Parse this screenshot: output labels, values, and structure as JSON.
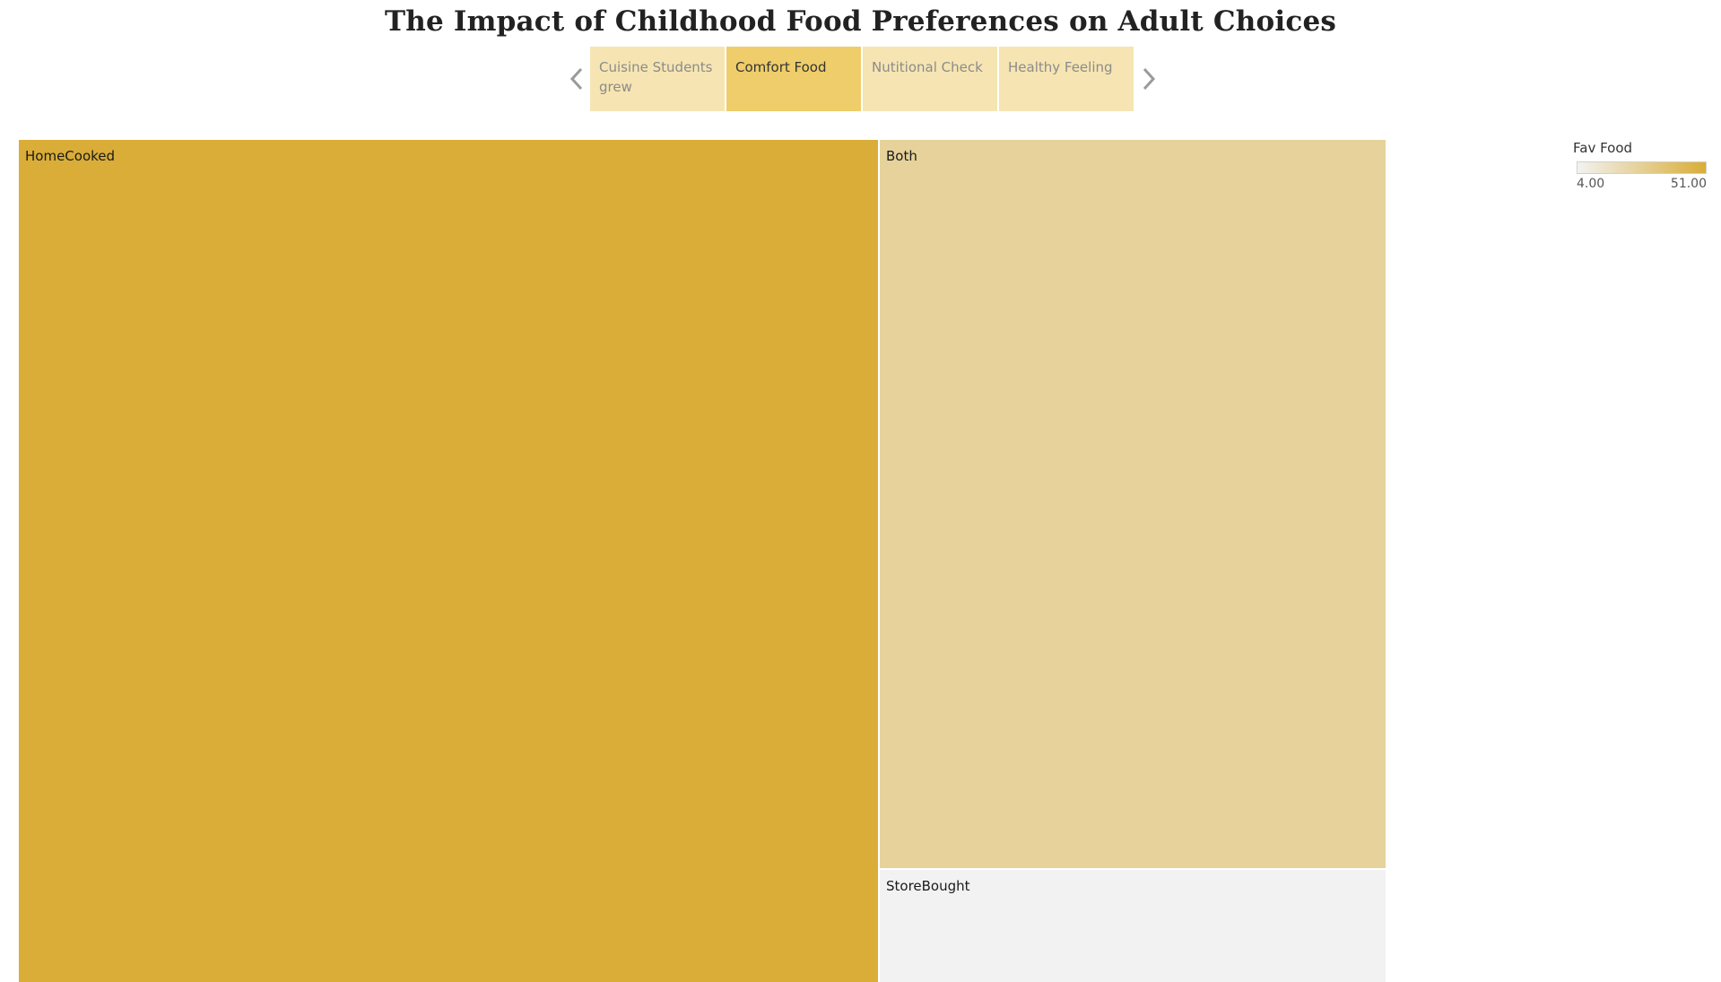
{
  "title": "The Impact of Childhood Food Preferences on Adult Choices",
  "story": {
    "prev_icon": "chevron-left-icon",
    "next_icon": "chevron-right-icon",
    "tabs": [
      {
        "label": "Cuisine Students grew",
        "active": false
      },
      {
        "label": "Comfort Food",
        "active": true
      },
      {
        "label": "Nutitional Check",
        "active": false
      },
      {
        "label": "Healthy Feeling",
        "active": false
      }
    ]
  },
  "legend": {
    "title": "Fav Food",
    "min_label": "4.00",
    "max_label": "51.00",
    "min": 4,
    "max": 51,
    "color_low": "#f2f2f2",
    "color_high": "#d9ad37"
  },
  "chart_data": {
    "type": "treemap",
    "measure": "Fav Food",
    "items": [
      {
        "label": "HomeCooked",
        "value": 51
      },
      {
        "label": "Both",
        "value": 26
      },
      {
        "label": "StoreBought",
        "value": 4
      }
    ]
  }
}
